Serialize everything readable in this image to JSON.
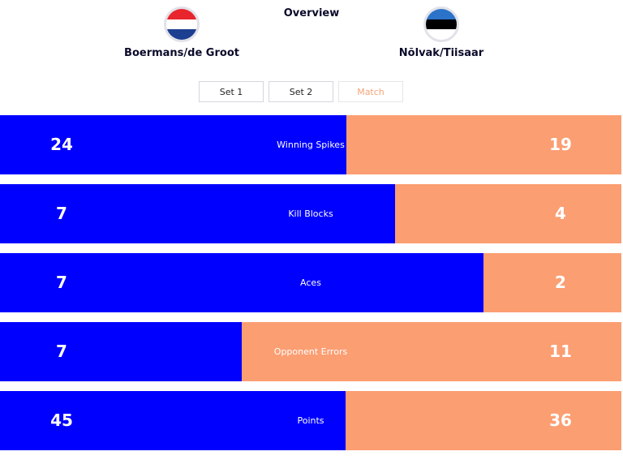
{
  "header": {
    "title": "Overview",
    "team_left": {
      "name": "Boermans/de Groot",
      "flag": "netherlands-flag",
      "colors": [
        "#e8242c",
        "#ffffff",
        "#1d3f91"
      ]
    },
    "team_right": {
      "name": "Nõlvak/Tiisaar",
      "flag": "estonia-flag",
      "colors": [
        "#2a73c9",
        "#000000",
        "#ffffff"
      ]
    }
  },
  "tabs": [
    {
      "label": "Set 1",
      "active": false
    },
    {
      "label": "Set 2",
      "active": false
    },
    {
      "label": "Match",
      "active": true
    }
  ],
  "colors": {
    "left": "#0000ff",
    "right": "#fb9e72"
  },
  "stats": [
    {
      "label": "Winning Spikes",
      "left": 24,
      "right": 19,
      "left_share": 0.558
    },
    {
      "label": "Kill Blocks",
      "left": 7,
      "right": 4,
      "left_share": 0.636
    },
    {
      "label": "Aces",
      "left": 7,
      "right": 2,
      "left_share": 0.778
    },
    {
      "label": "Opponent Errors",
      "left": 7,
      "right": 11,
      "left_share": 0.389
    },
    {
      "label": "Points",
      "left": 45,
      "right": 36,
      "left_share": 0.556
    }
  ]
}
